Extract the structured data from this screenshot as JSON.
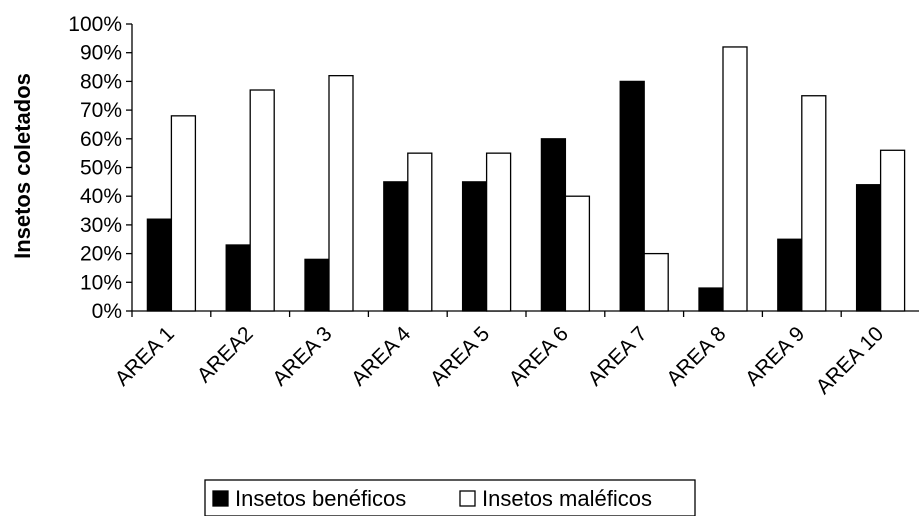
{
  "chart_data": {
    "type": "bar",
    "ylabel": "Insetos coletados",
    "categories": [
      "AREA 1",
      "AREA2",
      "AREA 3",
      "AREA 4",
      "AREA 5",
      "AREA 6",
      "AREA 7",
      "AREA 8",
      "AREA 9",
      "AREA 10"
    ],
    "y_ticks": [
      "0%",
      "10%",
      "20%",
      "30%",
      "40%",
      "50%",
      "60%",
      "70%",
      "80%",
      "90%",
      "100%"
    ],
    "ylim": [
      0,
      100
    ],
    "series": [
      {
        "name": "Insetos benéficos",
        "color": "#000000",
        "values": [
          32,
          23,
          18,
          45,
          45,
          60,
          80,
          8,
          25,
          44
        ]
      },
      {
        "name": "Insetos maléficos",
        "color": "#ffffff",
        "values": [
          68,
          77,
          82,
          55,
          55,
          40,
          20,
          92,
          75,
          56
        ]
      }
    ],
    "legend_position": "bottom",
    "grid": false
  }
}
